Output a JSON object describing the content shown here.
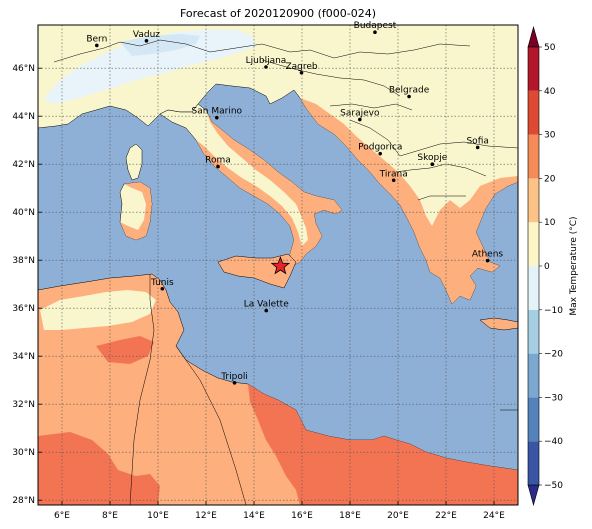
{
  "title": "Forecast of 2020120900 (f000-024)",
  "map": {
    "extent": {
      "lon": [
        5,
        25
      ],
      "lat": [
        27.8,
        47.8
      ]
    },
    "lon_ticks": [
      "6°E",
      "8°E",
      "10°E",
      "12°E",
      "14°E",
      "16°E",
      "18°E",
      "20°E",
      "22°E",
      "24°E"
    ],
    "lon_values": [
      6,
      8,
      10,
      12,
      14,
      16,
      18,
      20,
      22,
      24
    ],
    "lat_ticks": [
      "28°N",
      "30°N",
      "32°N",
      "34°N",
      "36°N",
      "38°N",
      "40°N",
      "42°N",
      "44°N",
      "46°N"
    ],
    "lat_values": [
      28,
      30,
      32,
      34,
      36,
      38,
      40,
      42,
      44,
      46
    ],
    "gridlines": true,
    "cities": [
      {
        "name": "Bern",
        "lon": 7.45,
        "lat": 46.95
      },
      {
        "name": "Vaduz",
        "lon": 9.52,
        "lat": 47.14
      },
      {
        "name": "Budapest",
        "lon": 19.04,
        "lat": 47.5
      },
      {
        "name": "Ljubljana",
        "lon": 14.5,
        "lat": 46.05
      },
      {
        "name": "Zagreb",
        "lon": 15.98,
        "lat": 45.81
      },
      {
        "name": "Belgrade",
        "lon": 20.46,
        "lat": 44.82
      },
      {
        "name": "San Marino",
        "lon": 12.45,
        "lat": 43.94
      },
      {
        "name": "Sarajevo",
        "lon": 18.41,
        "lat": 43.86
      },
      {
        "name": "Sofia",
        "lon": 23.32,
        "lat": 42.7
      },
      {
        "name": "Roma",
        "lon": 12.5,
        "lat": 41.9
      },
      {
        "name": "Podgorica",
        "lon": 19.26,
        "lat": 42.44
      },
      {
        "name": "Skopje",
        "lon": 21.43,
        "lat": 42.0
      },
      {
        "name": "Tirana",
        "lon": 19.82,
        "lat": 41.33
      },
      {
        "name": "Athens",
        "lon": 23.73,
        "lat": 37.98
      },
      {
        "name": "Tunis",
        "lon": 10.18,
        "lat": 36.81
      },
      {
        "name": "La Valette",
        "lon": 14.51,
        "lat": 35.9
      },
      {
        "name": "Tripoli",
        "lon": 13.19,
        "lat": 32.89
      }
    ],
    "marker": {
      "symbol": "star",
      "lon": 15.1,
      "lat": 37.75,
      "color": "#e8242b"
    }
  },
  "colorbar": {
    "label": "Max Temperature (°C)",
    "ticks": [
      "−50",
      "−40",
      "−30",
      "−20",
      "−10",
      "0",
      "10",
      "20",
      "30",
      "40",
      "50"
    ],
    "tick_values": [
      -50,
      -40,
      -30,
      -20,
      -10,
      0,
      10,
      20,
      30,
      40,
      50
    ],
    "colors": [
      "#2a2b8c",
      "#3a55a4",
      "#5482ba",
      "#7ba8d1",
      "#a6cfe4",
      "#e3f3f8",
      "#fdf5c6",
      "#fdc285",
      "#f48b59",
      "#dd4a33",
      "#b2162b",
      "#7a0125"
    ],
    "extend": "both"
  },
  "legend_colors": {
    "sea": "#8fb0d6",
    "cold": "#f9f6cd",
    "warm": "#fdaf7d",
    "hot": "#f27453",
    "snow": "#e8f4fa",
    "snow2": "#d3e8f4"
  }
}
